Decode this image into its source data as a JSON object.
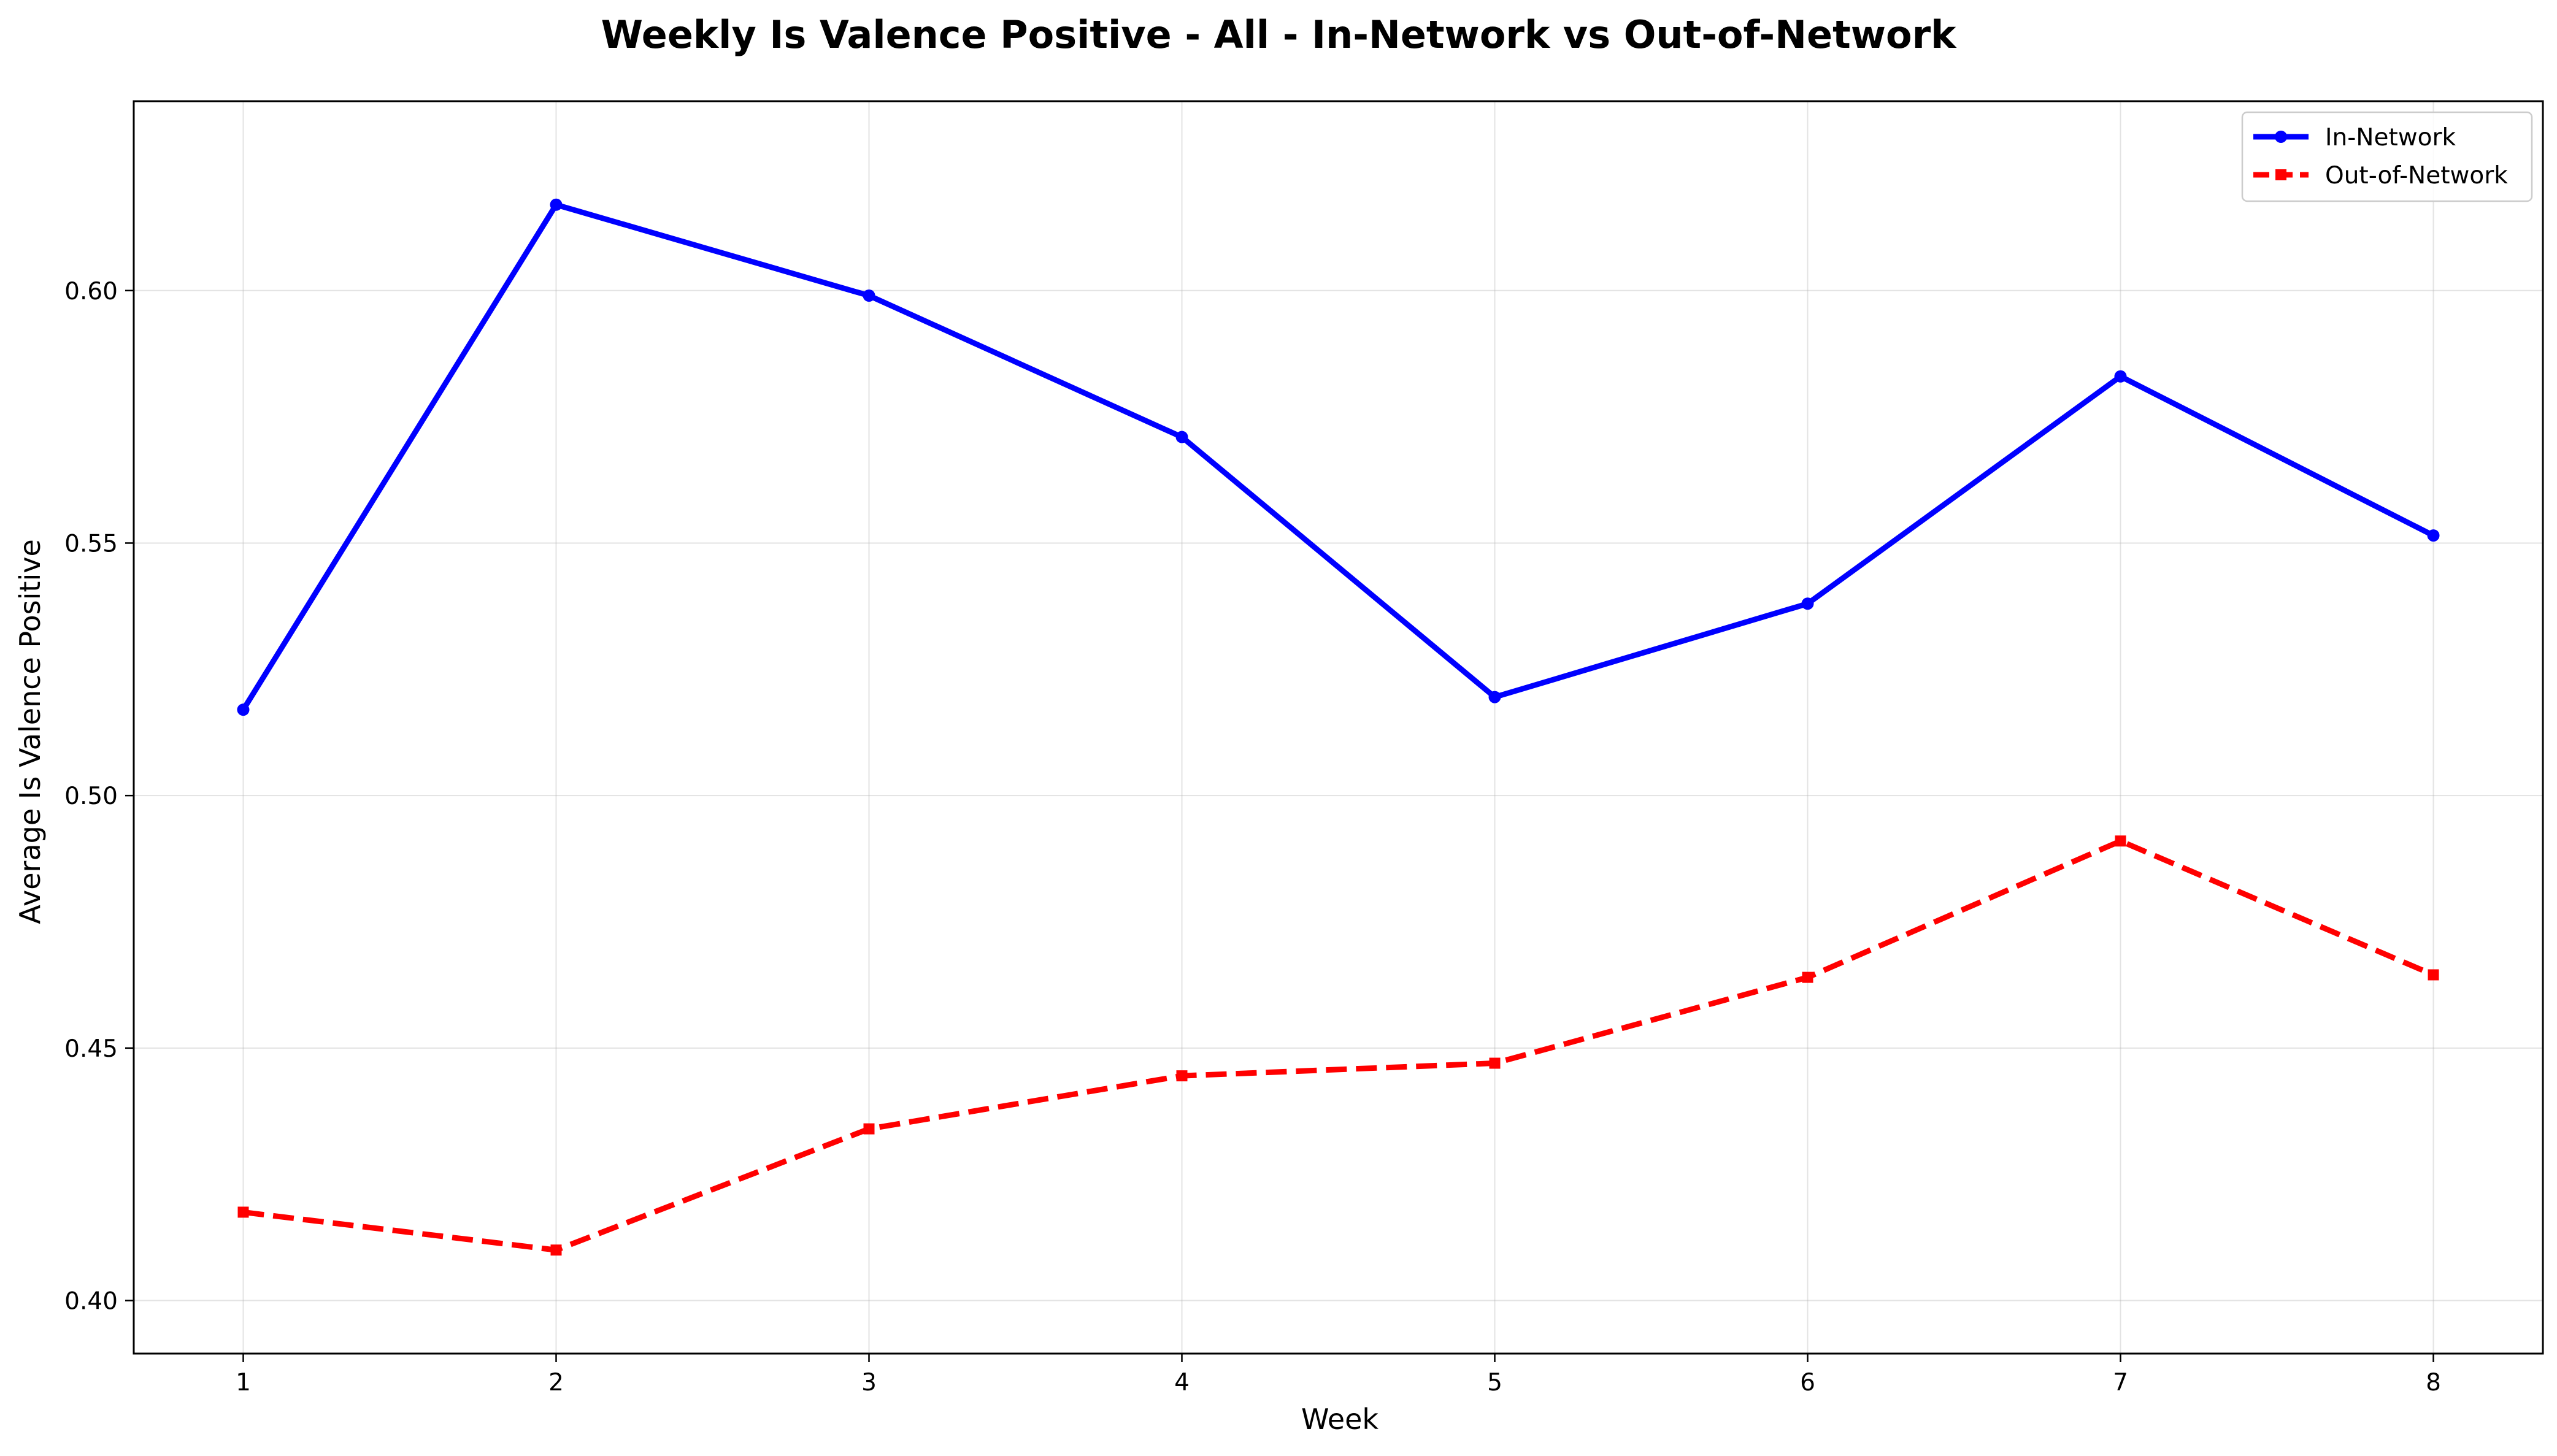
{
  "chart_data": {
    "type": "line",
    "title": "Weekly Is Valence Positive - All - In-Network vs Out-of-Network",
    "xlabel": "Week",
    "ylabel": "Average Is Valence Positive",
    "x": [
      1,
      2,
      3,
      4,
      5,
      6,
      7,
      8
    ],
    "x_ticks": [
      "1",
      "2",
      "3",
      "4",
      "5",
      "6",
      "7",
      "8"
    ],
    "xlim": [
      0.65,
      8.35
    ],
    "ylim": [
      0.3895,
      0.6375
    ],
    "y_ticks": [
      0.4,
      0.45,
      0.5,
      0.55,
      0.6
    ],
    "y_tick_labels": [
      "0.40",
      "0.45",
      "0.50",
      "0.55",
      "0.60"
    ],
    "grid": true,
    "legend_position": "top-right",
    "series": [
      {
        "name": "In-Network",
        "color": "#0000ff",
        "line_style": "solid",
        "marker": "circle",
        "values": [
          0.517,
          0.617,
          0.599,
          0.571,
          0.5195,
          0.538,
          0.583,
          0.5515
        ]
      },
      {
        "name": "Out-of-Network",
        "color": "#ff0000",
        "line_style": "dashed",
        "marker": "square",
        "values": [
          0.4175,
          0.41,
          0.434,
          0.4445,
          0.447,
          0.464,
          0.491,
          0.4645
        ]
      }
    ]
  }
}
